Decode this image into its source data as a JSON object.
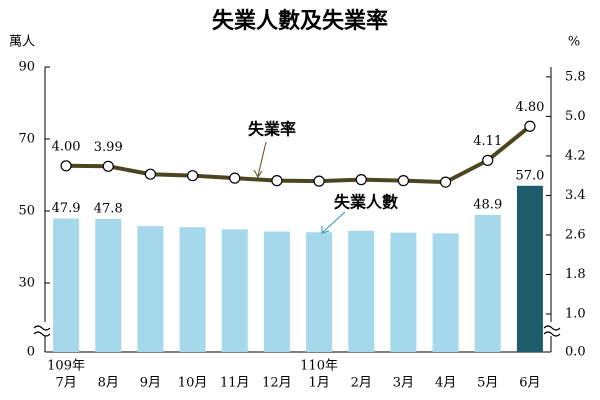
{
  "chart_data": {
    "type": "bar-line",
    "title": "失業人數及失業率",
    "y_label": "萬人",
    "y2_label": "%",
    "categories": [
      "7月",
      "8月",
      "9月",
      "10月",
      "11月",
      "12月",
      "1月",
      "2月",
      "3月",
      "4月",
      "5月",
      "6月"
    ],
    "year_labels": [
      "109年",
      null,
      null,
      null,
      null,
      null,
      "110年",
      null,
      null,
      null,
      null,
      null
    ],
    "series": [
      {
        "name": "失業人數",
        "type": "bar",
        "axis": "y",
        "values": [
          47.9,
          47.8,
          45.8,
          45.5,
          44.9,
          44.3,
          44.1,
          44.5,
          44.0,
          43.8,
          48.9,
          57.0
        ],
        "value_labels": [
          "47.9",
          "47.8",
          null,
          null,
          null,
          null,
          null,
          null,
          null,
          null,
          "48.9",
          "57.0"
        ],
        "colors": [
          "#a4d8ea",
          "#a4d8ea",
          "#a4d8ea",
          "#a4d8ea",
          "#a4d8ea",
          "#a4d8ea",
          "#a4d8ea",
          "#a4d8ea",
          "#a4d8ea",
          "#a4d8ea",
          "#a4d8ea",
          "#1e5c6b"
        ],
        "label_colors": [
          "#2a93b8",
          "#2a93b8",
          null,
          null,
          null,
          null,
          null,
          null,
          null,
          null,
          "#2a93b8",
          "#1e5c6b"
        ]
      },
      {
        "name": "失業率",
        "type": "line",
        "axis": "y2",
        "color": "#4b4520",
        "values": [
          4.0,
          3.99,
          3.83,
          3.8,
          3.75,
          3.7,
          3.69,
          3.72,
          3.7,
          3.67,
          4.11,
          4.8
        ],
        "value_labels": [
          "4.00",
          "3.99",
          null,
          null,
          null,
          null,
          null,
          null,
          null,
          null,
          "4.11",
          "4.80"
        ],
        "label_color": "#5b4a1a"
      }
    ],
    "ylim": [
      0,
      90
    ],
    "yticks": [
      0,
      30,
      50,
      70,
      90
    ],
    "y_break": [
      0,
      30
    ],
    "y2lim": [
      0,
      6.0
    ],
    "y2ticks": [
      {
        "value": 0,
        "label": "0.0"
      },
      {
        "value": 1,
        "label": "1.0"
      },
      1.8,
      2.6,
      3.4,
      4.2,
      {
        "value": 5,
        "label": "5.0"
      },
      5.8
    ],
    "y2_break": [
      0,
      1
    ]
  }
}
